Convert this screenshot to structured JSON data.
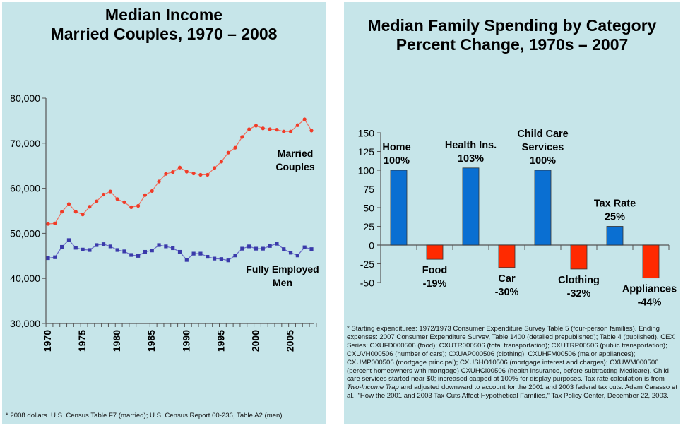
{
  "chart_data": [
    {
      "type": "line",
      "title": "Median Income\nMarried Couples, 1970 – 2008",
      "title_lines": [
        "Median Income",
        "Married Couples, 1970 – 2008"
      ],
      "xlabel": "",
      "ylabel": "",
      "ylim": [
        30000,
        80000
      ],
      "xlim": [
        1970,
        2008
      ],
      "y_ticks": [
        30000,
        40000,
        50000,
        60000,
        70000,
        80000
      ],
      "y_tick_labels": [
        "30,000",
        "40,000",
        "50,000",
        "60,000",
        "70,000",
        "80,000"
      ],
      "x_tick_labels": [
        "1970",
        "1975",
        "1980",
        "1985",
        "1990",
        "1995",
        "2000",
        "2005"
      ],
      "x_tick_values": [
        1970,
        1975,
        1980,
        1985,
        1990,
        1995,
        2000,
        2005
      ],
      "grid": false,
      "x": [
        1970,
        1971,
        1972,
        1973,
        1974,
        1975,
        1976,
        1977,
        1978,
        1979,
        1980,
        1981,
        1982,
        1983,
        1984,
        1985,
        1986,
        1987,
        1988,
        1989,
        1990,
        1991,
        1992,
        1993,
        1994,
        1995,
        1996,
        1997,
        1998,
        1999,
        2000,
        2001,
        2002,
        2003,
        2004,
        2005,
        2006,
        2007,
        2008
      ],
      "series": [
        {
          "name": "Married Couples",
          "label_lines": [
            "Married",
            "Couples"
          ],
          "color": "#f03c28",
          "marker": "circle",
          "values": [
            52100,
            52200,
            54800,
            56500,
            54800,
            54200,
            55900,
            57100,
            58600,
            59300,
            57600,
            56900,
            55800,
            56100,
            58500,
            59400,
            61500,
            63200,
            63600,
            64600,
            63700,
            63300,
            63000,
            63000,
            64500,
            65900,
            67900,
            69000,
            71400,
            73100,
            73900,
            73300,
            73100,
            73000,
            72600,
            72600,
            74000,
            75300,
            72800
          ]
        },
        {
          "name": "Fully Employed Men",
          "label_lines": [
            "Fully Employed",
            "Men"
          ],
          "color": "#3a3aaa",
          "marker": "square",
          "values": [
            44500,
            44700,
            47000,
            48500,
            46800,
            46400,
            46300,
            47400,
            47600,
            47100,
            46300,
            46000,
            45200,
            45000,
            45900,
            46200,
            47400,
            47100,
            46700,
            45900,
            44100,
            45500,
            45500,
            44800,
            44400,
            44300,
            44000,
            45100,
            46600,
            47100,
            46600,
            46600,
            47200,
            47700,
            46500,
            45700,
            45100,
            46900,
            46500
          ]
        }
      ],
      "footnote": "* 2008 dollars. U.S. Census Table F7 (married); U.S. Census Report 60-236, Table A2 (men)."
    },
    {
      "type": "bar",
      "title": "Median Family Spending by Category\nPercent Change, 1970s – 2007",
      "title_lines": [
        "Median Family Spending by Category",
        "Percent Change, 1970s – 2007"
      ],
      "xlabel": "",
      "ylabel": "",
      "ylim": [
        -50,
        150
      ],
      "y_ticks": [
        -50,
        -25,
        0,
        25,
        50,
        75,
        100,
        125,
        150
      ],
      "y_tick_labels": [
        "-50",
        "-25",
        "0",
        "25",
        "50",
        "75",
        "100",
        "125",
        "150"
      ],
      "grid": false,
      "categories": [
        "Home",
        "Food",
        "Health Ins.",
        "Car",
        "Child Care Services",
        "Clothing",
        "Tax Rate",
        "Appliances"
      ],
      "values": [
        100,
        -19,
        103,
        -30,
        100,
        -32,
        25,
        -44
      ],
      "data_labels": [
        {
          "lines": [
            "Home",
            "100%"
          ]
        },
        {
          "lines": [
            "Food",
            "-19%"
          ]
        },
        {
          "lines": [
            "Health Ins.",
            "103%"
          ]
        },
        {
          "lines": [
            "Car",
            "-30%"
          ]
        },
        {
          "lines": [
            "Child Care",
            "Services",
            "100%"
          ]
        },
        {
          "lines": [
            "Clothing",
            "-32%"
          ]
        },
        {
          "lines": [
            "Tax Rate",
            "25%"
          ]
        },
        {
          "lines": [
            "Appliances",
            "-44%"
          ]
        }
      ],
      "colors": {
        "positive": "#0a6fd2",
        "negative": "#ff2a00"
      },
      "footnote_parts": [
        {
          "text": "* Starting expenditures: 1972/1973 Consumer Expenditure Survey Table 5 (four-person families). Ending expenses: 2007 Consumer Expenditure Survey, Table 1400 (detailed prepublished); Table 4 (published). CEX Series: CXUFD000506 (food); CXUTR000506 (total transportation); CXUTRP00506 (public transportation); CXUVH000506 (number of cars); CXUAP000506 (clothing); CXUHFM00506 (major appliances); CXUMP000506 (mortgage principal); CXUSHO10506 (mortgage interest and charges); CXUWM000506 (percent homeowners with mortgage) CXUHCI00506 (health insurance, before subtracting Medicare). Child care services started near $0; increased capped at 100% for display purposes. Tax rate calculation is from ",
          "italic": false
        },
        {
          "text": "Two-Income Trap",
          "italic": true
        },
        {
          "text": " and adjusted downward to account for the 2001 and 2003 federal tax cuts. Adam Carasso et al., \"How the 2001 and 2003 Tax Cuts Affect Hypothetical Families,\" Tax Policy Center, December 22, 2003.",
          "italic": false
        }
      ]
    }
  ]
}
